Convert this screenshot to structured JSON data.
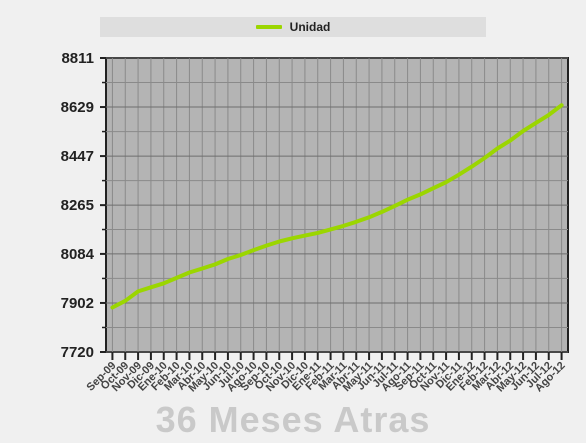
{
  "legend": {
    "label": "Unidad"
  },
  "watermark": "36 Meses Atras",
  "colors": {
    "plot_bg": "#b4b4b4",
    "line": "#9bd600",
    "grid": "#8a8a8a",
    "frame": "#f0f0f0"
  },
  "chart_data": {
    "type": "line",
    "title": "",
    "xlabel": "",
    "ylabel": "",
    "ylim": [
      7720,
      8811
    ],
    "yticks": [
      7720,
      7902,
      8084,
      8265,
      8447,
      8629,
      8811
    ],
    "grid": true,
    "legend_position": "top-center",
    "categories": [
      "Sep-09",
      "Oct-09",
      "Nov-09",
      "Dic-09",
      "Ene-10",
      "Feb-10",
      "Mar-10",
      "Abr-10",
      "May-10",
      "Jun-10",
      "Jul-10",
      "Ago-10",
      "Sep-10",
      "Oct-10",
      "Nov-10",
      "Dic-10",
      "Ene-11",
      "Feb-11",
      "Mar-11",
      "Abr-11",
      "May-11",
      "Jun-11",
      "Jul-11",
      "Ago-11",
      "Sep-11",
      "Oct-11",
      "Nov-11",
      "Dic-11",
      "Ene-12",
      "Feb-12",
      "Mar-12",
      "Abr-12",
      "May-12",
      "Jun-12",
      "Jul-12",
      "Ago-12"
    ],
    "series": [
      {
        "name": "Unidad",
        "values": [
          7885,
          7910,
          7945,
          7960,
          7975,
          7995,
          8015,
          8030,
          8045,
          8065,
          8080,
          8098,
          8115,
          8130,
          8142,
          8152,
          8162,
          8175,
          8188,
          8203,
          8220,
          8240,
          8262,
          8285,
          8305,
          8328,
          8350,
          8378,
          8408,
          8440,
          8475,
          8505,
          8540,
          8570,
          8600,
          8636
        ]
      }
    ]
  }
}
